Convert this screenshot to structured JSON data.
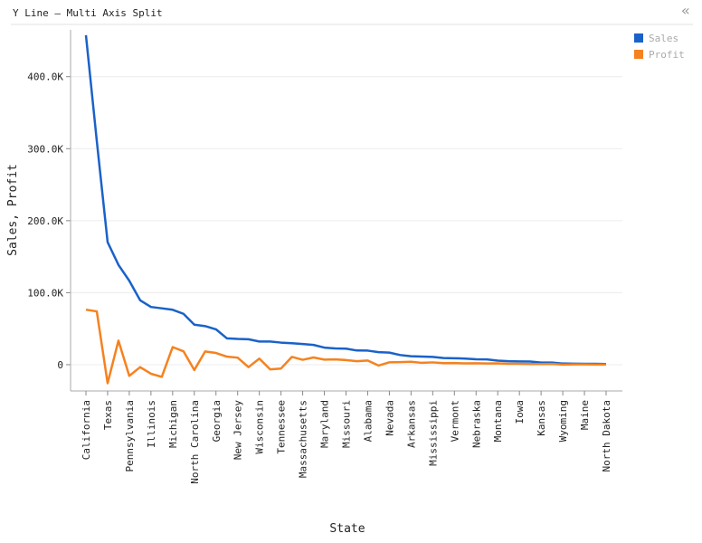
{
  "header": {
    "title": "Y Line – Multi Axis Split",
    "collapse_icon": "«"
  },
  "chart_data": {
    "type": "line",
    "x_label": "State",
    "y_label": "Sales, Profit",
    "categories": [
      "California",
      null,
      "Texas",
      null,
      "Pennsylvania",
      null,
      "Illinois",
      null,
      "Michigan",
      null,
      "North Carolina",
      null,
      "Georgia",
      null,
      "New Jersey",
      null,
      "Wisconsin",
      null,
      "Tennessee",
      null,
      "Massachusetts",
      null,
      "Maryland",
      null,
      "Missouri",
      null,
      "Alabama",
      null,
      "Nevada",
      null,
      "Arkansas",
      null,
      "Mississippi",
      null,
      "Vermont",
      null,
      "Nebraska",
      null,
      "Montana",
      null,
      "Iowa",
      null,
      "Kansas",
      null,
      "Wyoming",
      null,
      "Maine",
      null,
      "North Dakota"
    ],
    "series": [
      {
        "name": "Sales",
        "color": "#1a62c9",
        "values": [
          457688,
          310876,
          170188,
          138641,
          116512,
          89474,
          80166,
          78258,
          76270,
          70637,
          55603,
          53555,
          49096,
          36592,
          35764,
          35282,
          32115,
          32108,
          30662,
          29863,
          28634,
          27451,
          23706,
          22628,
          22205,
          19683,
          19511,
          17431,
          16729,
          13384,
          11678,
          11220,
          10771,
          9217,
          8929,
          8482,
          7465,
          7293,
          5589,
          4784,
          4580,
          4382,
          2914,
          2865,
          1603,
          1316,
          1271,
          1210,
          920
        ]
      },
      {
        "name": "Profit",
        "color": "#f5821f",
        "values": [
          76381,
          74039,
          -25729,
          33403,
          -15560,
          -3399,
          -12608,
          -16971,
          24463,
          18598,
          -7491,
          18383,
          16250,
          11200,
          9773,
          -3428,
          8402,
          -6528,
          -5342,
          10823,
          6786,
          9977,
          7031,
          7286,
          6436,
          4853,
          5787,
          -1190,
          3317,
          3511,
          4009,
          2547,
          3172,
          2196,
          2245,
          1769,
          2037,
          1707,
          1833,
          1157,
          1184,
          827,
          836,
          1060,
          100,
          395,
          454,
          186,
          230
        ]
      }
    ],
    "ylim": [
      -36500,
      465000
    ],
    "yticks": [
      {
        "value": 0,
        "label": "0"
      },
      {
        "value": 100000,
        "label": "100.0K"
      },
      {
        "value": 200000,
        "label": "200.0K"
      },
      {
        "value": 300000,
        "label": "300.0K"
      },
      {
        "value": 400000,
        "label": "400.0K"
      }
    ],
    "grid": true,
    "legend": "top-right"
  }
}
